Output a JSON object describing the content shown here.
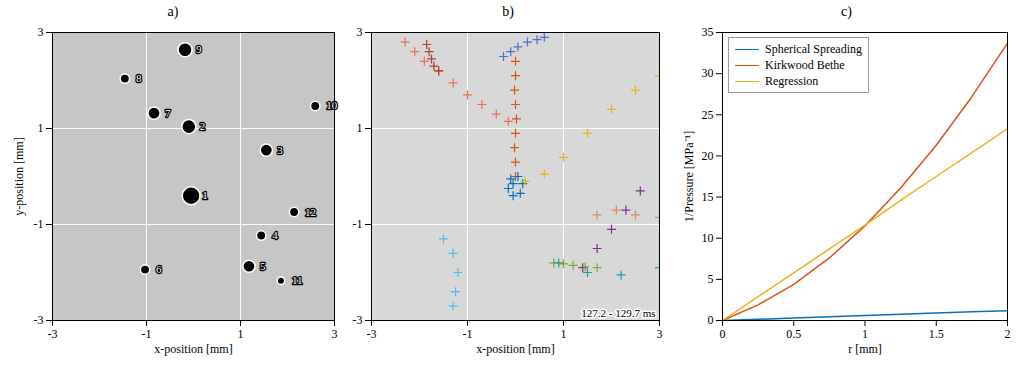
{
  "chart_data": [
    {
      "type": "scatter",
      "title": "a)",
      "xlabel": "x-position [mm]",
      "ylabel": "y-position [mm]",
      "xlim": [
        -3,
        3
      ],
      "ylim": [
        -3,
        3
      ],
      "xticks": [
        -3,
        -1,
        1,
        3
      ],
      "yticks": [
        -3,
        -1,
        1,
        3
      ],
      "grid": true,
      "color": "#000000",
      "marker": "circle",
      "labels": [
        "1",
        "2",
        "3",
        "4",
        "5",
        "6",
        "7",
        "8",
        "9",
        "10",
        "11",
        "12"
      ],
      "x": [
        -0.05,
        -0.1,
        1.55,
        1.44,
        1.18,
        -1.03,
        -0.84,
        -1.46,
        -0.18,
        2.59,
        1.86,
        2.14
      ],
      "y": [
        -0.4,
        1.04,
        0.55,
        -1.23,
        -1.87,
        -1.94,
        1.32,
        2.04,
        2.64,
        1.47,
        -2.17,
        -0.74
      ],
      "radius": [
        0.19,
        0.15,
        0.13,
        0.1,
        0.13,
        0.1,
        0.13,
        0.1,
        0.15,
        0.1,
        0.08,
        0.1
      ]
    },
    {
      "type": "scatter",
      "title": "b)",
      "xlabel": "x-position [mm]",
      "xlim": [
        -3,
        3
      ],
      "ylim": [
        -3,
        3
      ],
      "xticks": [
        -3,
        -1,
        1,
        3
      ],
      "yticks": [
        -3,
        -1,
        1,
        3
      ],
      "grid": true,
      "annotation": "127.2 - 129.7 ms",
      "series": [
        {
          "color": "#e8705a",
          "marker": "plus",
          "x": [
            -2.3,
            -2.1,
            -1.9,
            -1.6,
            -1.3,
            -1.0,
            -0.7,
            -0.4,
            -0.15
          ],
          "y": [
            2.8,
            2.6,
            2.4,
            2.2,
            1.95,
            1.7,
            1.5,
            1.3,
            1.15
          ]
        },
        {
          "color": "#b03a2e",
          "marker": "plus",
          "x": [
            -1.85,
            -1.8,
            -1.75,
            -1.7,
            -1.6
          ],
          "y": [
            2.75,
            2.6,
            2.45,
            2.3,
            2.2
          ]
        },
        {
          "color": "#4a6fd0",
          "marker": "plus",
          "x": [
            -0.25,
            -0.1,
            0.05,
            0.25,
            0.45,
            0.6
          ],
          "y": [
            2.5,
            2.6,
            2.7,
            2.8,
            2.85,
            2.9
          ]
        },
        {
          "color": "#d95319",
          "marker": "plus",
          "x": [
            0.0,
            0.0,
            -0.02,
            0.0,
            0.02,
            0.0,
            -0.02,
            0.0,
            0.0
          ],
          "y": [
            2.4,
            2.1,
            1.8,
            1.5,
            1.2,
            0.9,
            0.6,
            0.3,
            0.0
          ]
        },
        {
          "color": "#0072bd",
          "marker": "plus",
          "x": [
            -0.1,
            0.05,
            0.15,
            0.1,
            -0.05,
            -0.15,
            -0.05
          ],
          "y": [
            -0.05,
            0.0,
            -0.15,
            -0.35,
            -0.4,
            -0.25,
            -0.15
          ]
        },
        {
          "color": "#edb120",
          "marker": "plus",
          "x": [
            0.2,
            0.6,
            1.0,
            1.5,
            2.0,
            2.5,
            3.0
          ],
          "y": [
            -0.1,
            0.05,
            0.4,
            0.9,
            1.4,
            1.8,
            2.1
          ]
        },
        {
          "color": "#7e2f8e",
          "marker": "plus",
          "x": [
            1.4,
            1.7,
            2.0,
            2.3,
            2.6
          ],
          "y": [
            -1.9,
            -1.5,
            -1.1,
            -0.7,
            -0.3
          ]
        },
        {
          "color": "#e0895a",
          "marker": "plus",
          "x": [
            1.7,
            2.1,
            2.5,
            3.0
          ],
          "y": [
            -0.8,
            -0.7,
            -0.8,
            -0.85
          ]
        },
        {
          "color": "#77ac30",
          "marker": "plus",
          "x": [
            0.8,
            1.0,
            1.2,
            1.45,
            1.7
          ],
          "y": [
            -1.8,
            -1.82,
            -1.85,
            -1.88,
            -1.9
          ]
        },
        {
          "color": "#1a9e9e",
          "marker": "plus",
          "x": [
            0.9,
            1.5,
            2.2,
            3.0
          ],
          "y": [
            -1.8,
            -2.0,
            -2.05,
            -1.9
          ]
        },
        {
          "color": "#4dbeee",
          "marker": "plus",
          "x": [
            -1.5,
            -1.3,
            -1.2,
            -1.25,
            -1.3
          ],
          "y": [
            -1.3,
            -1.6,
            -2.0,
            -2.4,
            -2.7
          ]
        }
      ]
    },
    {
      "type": "line",
      "title": "c)",
      "xlabel": "r [mm]",
      "ylabel": "1/Pressure [MPa⁻¹]",
      "xlim": [
        0,
        2
      ],
      "ylim": [
        0,
        35
      ],
      "xticks": [
        0,
        0.5,
        1,
        1.5,
        2
      ],
      "yticks": [
        0,
        5,
        10,
        15,
        20,
        25,
        30,
        35
      ],
      "grid": false,
      "legend": "top-left",
      "x": [
        0,
        0.25,
        0.5,
        0.75,
        1,
        1.25,
        1.5,
        1.75,
        2
      ],
      "series": [
        {
          "name": "Spherical Spreading",
          "color": "#0072bd",
          "values": [
            0,
            0.15,
            0.3,
            0.45,
            0.6,
            0.75,
            0.9,
            1.05,
            1.2
          ]
        },
        {
          "name": "Kirkwood Bethe",
          "color": "#d95319",
          "values": [
            0,
            1.9,
            4.4,
            7.6,
            11.5,
            16.1,
            21.3,
            27.2,
            33.7
          ]
        },
        {
          "name": "Regression",
          "color": "#edb120",
          "values": [
            0,
            2.9,
            5.8,
            8.7,
            11.6,
            14.6,
            17.5,
            20.4,
            23.3
          ]
        }
      ]
    }
  ]
}
